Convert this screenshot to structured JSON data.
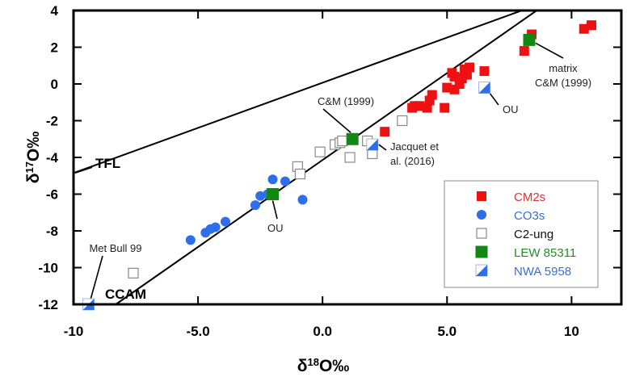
{
  "chart_data": {
    "type": "scatter",
    "title": "",
    "xlabel": "δ18O‰",
    "ylabel": "δ17O‰",
    "xlim": [
      -10,
      12
    ],
    "ylim": [
      -12,
      4
    ],
    "xticks": [
      -10,
      -5,
      0,
      5,
      10
    ],
    "xtick_labels": [
      "-10",
      "-5.0",
      "0.0",
      "5.0",
      "10"
    ],
    "yticks": [
      -12,
      -10,
      -8,
      -6,
      -4,
      -2,
      0,
      2,
      4
    ],
    "ytick_labels": [
      "-12",
      "-10",
      "-8",
      "-6",
      "-4",
      "-2",
      "0",
      "2",
      "4"
    ],
    "grid": false,
    "legend_position": "bottom-right",
    "reference_lines": [
      {
        "name": "TFL",
        "label": "TFL",
        "slope": 0.52,
        "x_range": [
          -10,
          8.0
        ],
        "anchor": [
          0,
          0
        ]
      },
      {
        "name": "CCAM",
        "label": "CCAM",
        "slope": 0.94,
        "x_range": [
          -9.4,
          8.6
        ],
        "anchor": [
          0,
          -4.0
        ]
      }
    ],
    "series": [
      {
        "name": "CM2s",
        "color": "#ee1111",
        "marker": "square-filled",
        "points": [
          [
            5.2,
            0.6
          ],
          [
            5.3,
            0.4
          ],
          [
            5.7,
            0.8
          ],
          [
            5.9,
            0.9
          ],
          [
            5.8,
            0.5
          ],
          [
            5.6,
            0.3
          ],
          [
            5.5,
            0.0
          ],
          [
            6.5,
            0.7
          ],
          [
            5.0,
            -0.2
          ],
          [
            5.3,
            -0.3
          ],
          [
            4.4,
            -0.6
          ],
          [
            4.3,
            -0.9
          ],
          [
            4.2,
            -1.3
          ],
          [
            4.9,
            -1.3
          ],
          [
            3.7,
            -1.2
          ],
          [
            3.6,
            -1.3
          ],
          [
            3.9,
            -1.2
          ],
          [
            2.5,
            -2.6
          ],
          [
            8.4,
            2.7
          ],
          [
            8.1,
            1.8
          ],
          [
            10.5,
            3.0
          ],
          [
            10.8,
            3.2
          ]
        ]
      },
      {
        "name": "CO3s",
        "color": "#2c6fe8",
        "marker": "circle-filled",
        "points": [
          [
            -5.3,
            -8.5
          ],
          [
            -4.7,
            -8.1
          ],
          [
            -4.5,
            -7.9
          ],
          [
            -4.3,
            -7.8
          ],
          [
            -3.9,
            -7.5
          ],
          [
            -2.7,
            -6.6
          ],
          [
            -2.5,
            -6.1
          ],
          [
            -2.0,
            -5.2
          ],
          [
            -2.2,
            -6.0
          ],
          [
            -1.5,
            -5.3
          ],
          [
            -0.8,
            -6.3
          ]
        ]
      },
      {
        "name": "C2-ung",
        "color": "#888888",
        "marker": "square-open",
        "points": [
          [
            -7.6,
            -10.3
          ],
          [
            -1.0,
            -4.5
          ],
          [
            -0.9,
            -4.9
          ],
          [
            -0.1,
            -3.7
          ],
          [
            0.5,
            -3.3
          ],
          [
            0.7,
            -3.2
          ],
          [
            0.8,
            -3.1
          ],
          [
            1.1,
            -4.0
          ],
          [
            1.8,
            -3.1
          ],
          [
            2.0,
            -3.8
          ],
          [
            3.2,
            -2.0
          ]
        ]
      },
      {
        "name": "LEW 85311",
        "color": "#118811",
        "marker": "square-filled",
        "points": [
          [
            -2.0,
            -6.0
          ],
          [
            1.2,
            -3.0
          ],
          [
            8.3,
            2.4
          ]
        ]
      },
      {
        "name": "NWA 5958",
        "color": "#2c6fe8",
        "marker": "square-half",
        "points": [
          [
            -9.4,
            -12.0
          ],
          [
            2.0,
            -3.3
          ],
          [
            6.5,
            -0.2
          ]
        ]
      }
    ],
    "annotations": [
      {
        "text": "C&M (1999)",
        "target": [
          1.2,
          -3.0
        ]
      },
      {
        "text": "Jacquet et",
        "text2": "al. (2016)",
        "target": [
          2.0,
          -3.3
        ]
      },
      {
        "text": "OU",
        "target": [
          6.5,
          -0.2
        ]
      },
      {
        "text": "OU",
        "target": [
          -2.0,
          -6.0
        ]
      },
      {
        "text": "matrix",
        "text2": "C&M (1999)",
        "target": [
          8.3,
          2.4
        ]
      },
      {
        "text": "Met Bull 99",
        "target": [
          -9.4,
          -12.0
        ]
      }
    ]
  }
}
